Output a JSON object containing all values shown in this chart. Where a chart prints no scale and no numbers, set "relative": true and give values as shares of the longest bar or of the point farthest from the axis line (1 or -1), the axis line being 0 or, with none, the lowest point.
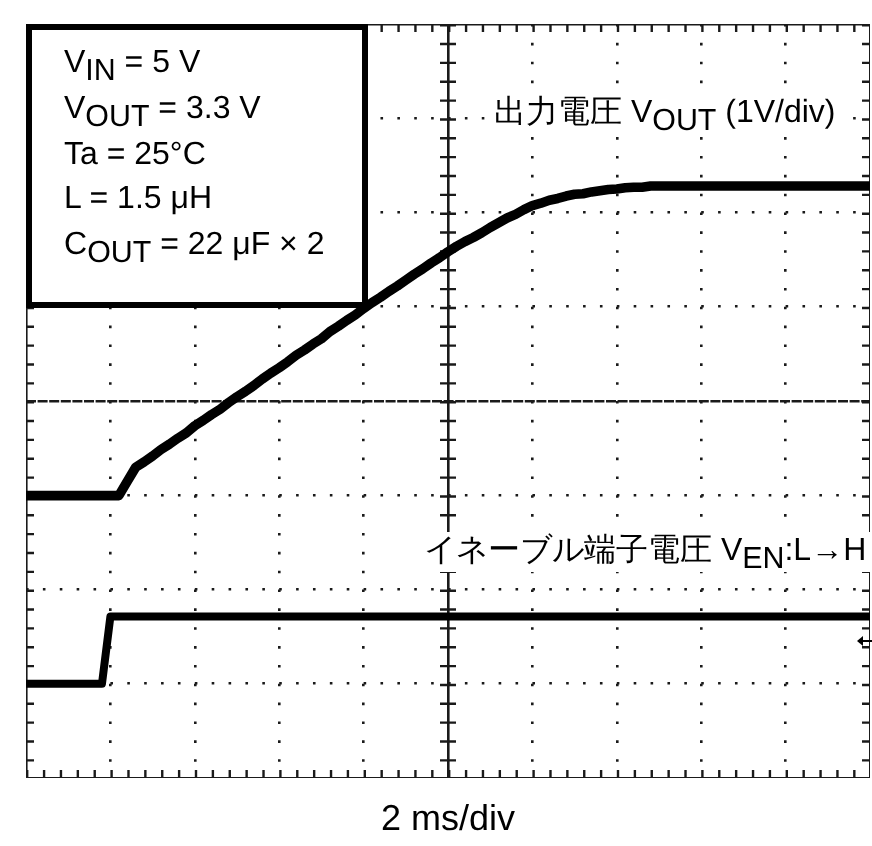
{
  "chart_data": {
    "type": "line",
    "xlabel": "2 ms/div",
    "relative": true,
    "grid": true,
    "marker": "none",
    "line_style": "solid",
    "categories": [
      null,
      null,
      null,
      null,
      null,
      null,
      null,
      null,
      null,
      null,
      null,
      null,
      null,
      null,
      null,
      null,
      null,
      null,
      null,
      null,
      null,
      null,
      null,
      null,
      null,
      null,
      null,
      null,
      null,
      null,
      null,
      null,
      null,
      null,
      null,
      null,
      null,
      null,
      null,
      null,
      null,
      null,
      null,
      null,
      null,
      null,
      null,
      null,
      null,
      null,
      null,
      null,
      null,
      null,
      null,
      null,
      null,
      null,
      null,
      null,
      null,
      null,
      null,
      null,
      null,
      null,
      null,
      null,
      null,
      null,
      null,
      null,
      null,
      null,
      null,
      null,
      null,
      null,
      null,
      null,
      null,
      null,
      null,
      null,
      null,
      null,
      null,
      null,
      null,
      null,
      null,
      null,
      null,
      null,
      null,
      null,
      null,
      null,
      null,
      null,
      null
    ],
    "series": [
      {
        "name": "出力電圧 V$_{OUT}$ (1V/div)",
        "color": "#000000",
        "values": [
          0.477,
          0.477,
          0.477,
          0.477,
          0.477,
          0.477,
          0.477,
          0.477,
          0.477,
          0.477,
          0.477,
          0.477,
          0.501,
          0.525,
          0.534,
          0.544,
          0.555,
          0.564,
          0.574,
          0.583,
          0.595,
          0.604,
          0.614,
          0.623,
          0.634,
          0.644,
          0.653,
          0.663,
          0.674,
          0.684,
          0.693,
          0.703,
          0.714,
          0.723,
          0.733,
          0.742,
          0.754,
          0.763,
          0.773,
          0.782,
          0.793,
          0.803,
          0.812,
          0.822,
          0.831,
          0.841,
          0.851,
          0.86,
          0.87,
          0.879,
          0.889,
          0.898,
          0.906,
          0.913,
          0.921,
          0.93,
          0.938,
          0.946,
          0.952,
          0.96,
          0.967,
          0.971,
          0.976,
          0.979,
          0.983,
          0.986,
          0.987,
          0.99,
          0.992,
          0.994,
          0.995,
          0.997,
          0.998,
          0.998,
          1,
          1,
          1,
          1,
          1,
          1,
          1,
          1,
          1,
          1,
          1,
          1,
          1,
          1,
          1,
          1,
          1,
          1,
          1,
          1,
          1,
          1,
          1,
          1,
          1,
          1,
          1
        ]
      },
      {
        "name": "イネーブル端子電圧 V$_{EN}$:L→H",
        "color": "#000000",
        "values": [
          0.159,
          0.159,
          0.159,
          0.159,
          0.159,
          0.159,
          0.159,
          0.159,
          0.159,
          0.159,
          0.273,
          0.273,
          0.273,
          0.273,
          0.273,
          0.273,
          0.273,
          0.273,
          0.273,
          0.273,
          0.273,
          0.273,
          0.273,
          0.273,
          0.273,
          0.273,
          0.273,
          0.273,
          0.273,
          0.273,
          0.273,
          0.273,
          0.273,
          0.273,
          0.273,
          0.273,
          0.273,
          0.273,
          0.273,
          0.273,
          0.273,
          0.273,
          0.273,
          0.273,
          0.273,
          0.273,
          0.273,
          0.273,
          0.273,
          0.273,
          0.273,
          0.273,
          0.273,
          0.273,
          0.273,
          0.273,
          0.273,
          0.273,
          0.273,
          0.273,
          0.273,
          0.273,
          0.273,
          0.273,
          0.273,
          0.273,
          0.273,
          0.273,
          0.273,
          0.273,
          0.273,
          0.273,
          0.273,
          0.273,
          0.273,
          0.273,
          0.273,
          0.273,
          0.273,
          0.273,
          0.273,
          0.273,
          0.273,
          0.273,
          0.273,
          0.273,
          0.273,
          0.273,
          0.273,
          0.273,
          0.273,
          0.273,
          0.273,
          0.273,
          0.273,
          0.273,
          0.273,
          0.273,
          0.273,
          0.273,
          0.273
        ]
      }
    ],
    "annotations": [
      "V$_{IN}$ = 5 V",
      "V$_{OUT}$ = 3.3 V",
      "Ta = 25°C",
      "L = 1.5 μH",
      "C$_{OUT}$ = 22 μF × 2"
    ]
  }
}
